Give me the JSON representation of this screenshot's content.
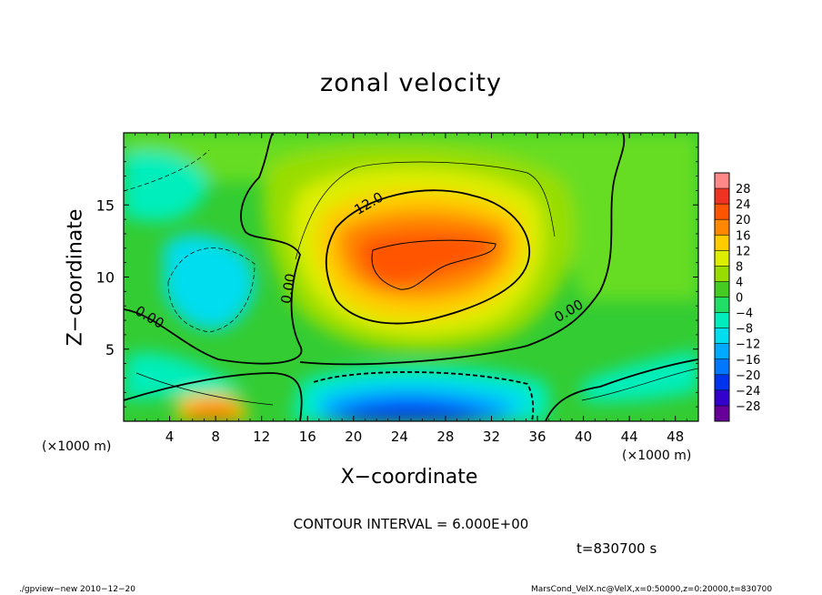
{
  "chart_data": {
    "type": "heatmap",
    "title": "zonal velocity",
    "xlabel": "X−coordinate",
    "ylabel": "Z−coordinate",
    "x_unit_left": "(×1000 m)",
    "x_unit_right": "(×1000 m)",
    "x_ticks": [
      "4",
      "8",
      "12",
      "16",
      "20",
      "24",
      "28",
      "32",
      "36",
      "40",
      "44",
      "48"
    ],
    "x_tick_values": [
      4,
      8,
      12,
      16,
      20,
      24,
      28,
      32,
      36,
      40,
      44,
      48
    ],
    "xlim": [
      0,
      50
    ],
    "y_ticks": [
      "5",
      "10",
      "15"
    ],
    "y_tick_values": [
      5,
      10,
      15
    ],
    "ylim": [
      0,
      20
    ],
    "colorbar_labels": [
      "28",
      "24",
      "20",
      "16",
      "12",
      "8",
      "4",
      "0",
      "−4",
      "−8",
      "−12",
      "−16",
      "−20",
      "−24",
      "−28"
    ],
    "colorbar_levels": [
      28,
      24,
      20,
      16,
      12,
      8,
      4,
      0,
      -4,
      -8,
      -12,
      -16,
      -20,
      -24,
      -28
    ],
    "contour_labels": [
      "12.0",
      "0.00",
      "0.00",
      "0.00"
    ],
    "contour_interval_text": "CONTOUR INTERVAL = 6.000E+00",
    "time_text": "t=830700 s",
    "features": [
      {
        "name": "positive-max",
        "x": 26,
        "z": 11.5,
        "value": 22
      },
      {
        "name": "negative-min",
        "x": 23,
        "z": 1,
        "value": -26
      },
      {
        "name": "surface-positive",
        "x": 7.5,
        "z": 1,
        "value": 16
      }
    ],
    "grid": false
  },
  "colors": {
    "background": "#33cc33",
    "palette": [
      "#660099",
      "#3300cc",
      "#0033ee",
      "#0077ff",
      "#00aaff",
      "#00ddee",
      "#00eebb",
      "#22dd66",
      "#44cc22",
      "#99dd00",
      "#ddee00",
      "#ffcc00",
      "#ff8800",
      "#ff5500",
      "#ee3322",
      "#ff8888"
    ]
  },
  "footer": {
    "left": "./gpview−new   2010−12−20",
    "right": "MarsCond_VelX.nc@VelX,x=0:50000,z=0:20000,t=830700"
  }
}
